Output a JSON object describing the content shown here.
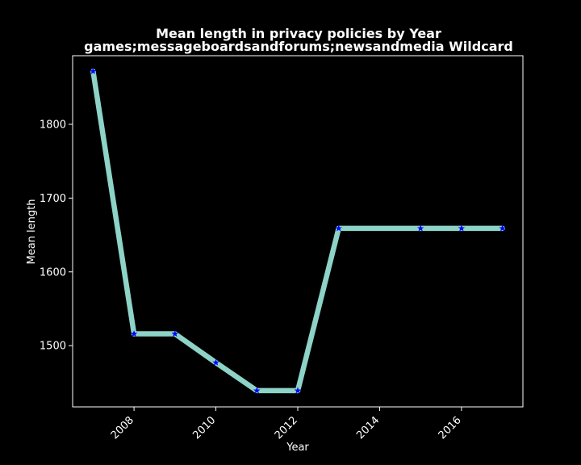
{
  "chart_data": {
    "type": "line",
    "title": "Mean length in privacy policies by Year",
    "subtitle": "games;messageboardsandforums;newsandmedia Wildcard",
    "xlabel": "Year",
    "ylabel": "Mean length",
    "x": [
      2007,
      2008,
      2009,
      2010,
      2011,
      2012,
      2013,
      2015,
      2016,
      2017
    ],
    "series": [
      {
        "values": [
          1872,
          1516,
          1516,
          1477,
          1439,
          1439,
          1659,
          1659,
          1659,
          1659
        ]
      }
    ],
    "xticks": [
      "2008",
      "2010",
      "2012",
      "2014",
      "2016"
    ],
    "yticks": [
      "1500",
      "1600",
      "1700",
      "1800"
    ],
    "xlim": [
      2006.5,
      2017.5
    ],
    "ylim": [
      1417,
      1893
    ],
    "grid": false,
    "marker": "star",
    "colors": {
      "background": "#000000",
      "line": "#8dd3c7",
      "marker": "#0000ff",
      "text": "#ffffff",
      "frame": "#ffffff"
    }
  }
}
